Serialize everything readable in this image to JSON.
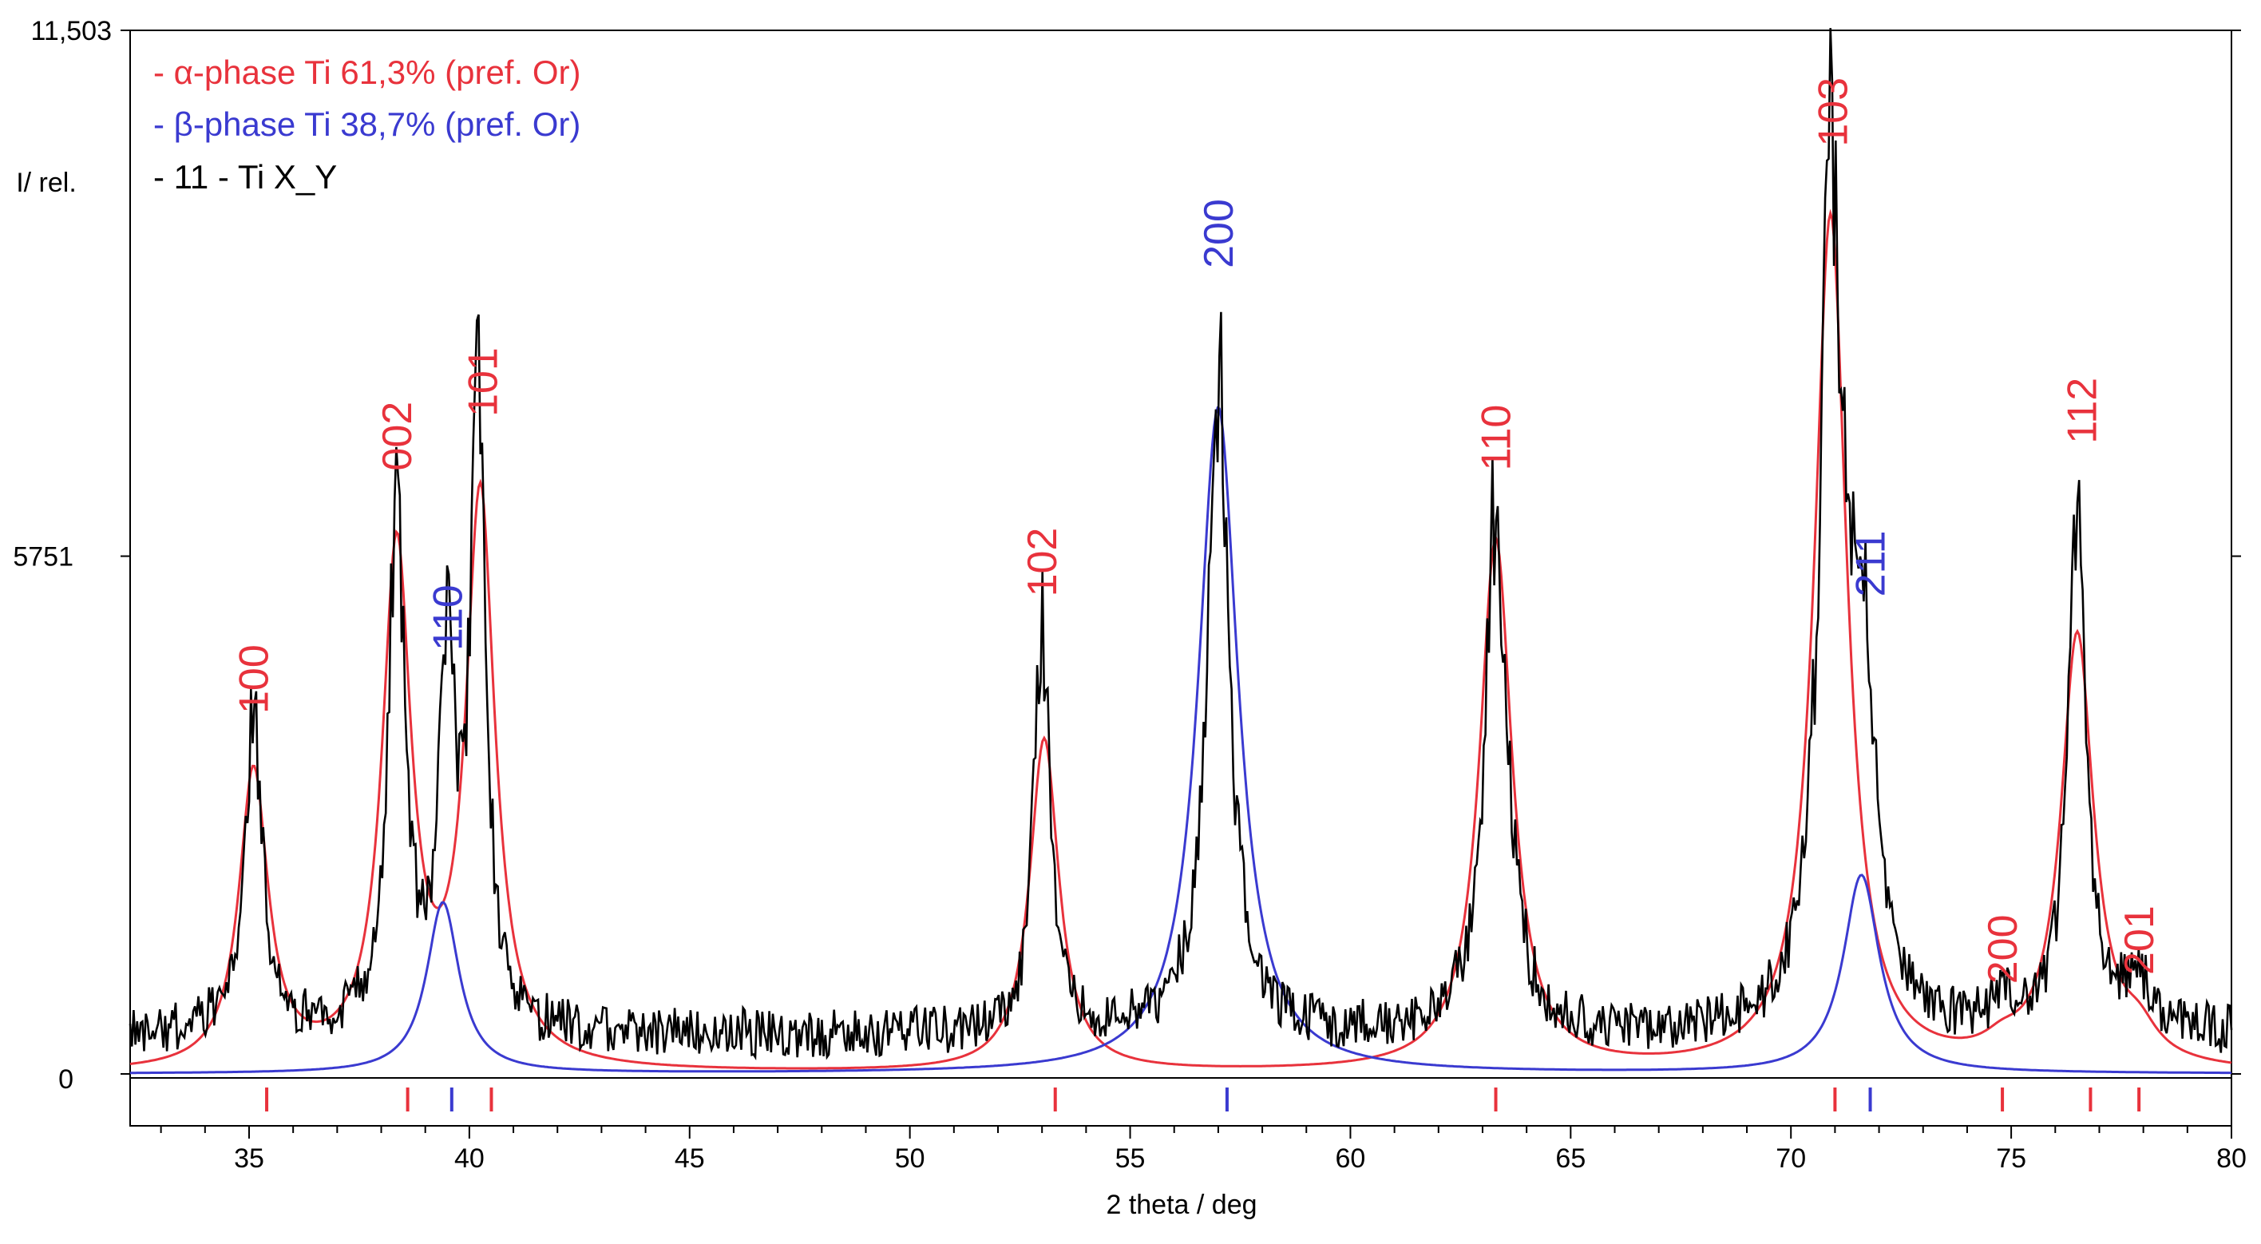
{
  "chart_data": {
    "type": "line",
    "xlabel": "2 theta /  deg",
    "ylabel": "I/ rel.",
    "xlim": [
      32.3,
      80
    ],
    "ylim": [
      0,
      11503
    ],
    "x_ticks": [
      "35",
      "40",
      "45",
      "50",
      "55",
      "60",
      "65",
      "70",
      "75",
      "80"
    ],
    "y_tick_labels": [
      {
        "value": 11503,
        "label": "11,503"
      },
      {
        "value": 5751,
        "label": "5751"
      },
      {
        "value": 0,
        "label": "0"
      }
    ],
    "grid": false,
    "legend_position": "top-left",
    "legend": [
      {
        "text": "- α-phase Ti 61,3% (pref. Or)",
        "color": "#e8323c"
      },
      {
        "text": "- β-phase Ti 38,7% (pref. Or)",
        "color": "#3a3ad0"
      },
      {
        "text": "- 11 - Ti X_Y",
        "color": "#000000"
      }
    ],
    "colors": {
      "alpha": "#e8323c",
      "beta": "#3a3ad0",
      "measured": "#000000"
    },
    "measured_peaks": [
      {
        "x": 35.1,
        "y": 3600,
        "w": 0.25
      },
      {
        "x": 38.35,
        "y": 5800,
        "w": 0.22
      },
      {
        "x": 39.5,
        "y": 4000,
        "w": 0.22
      },
      {
        "x": 40.2,
        "y": 6500,
        "w": 0.22
      },
      {
        "x": 53.0,
        "y": 4500,
        "w": 0.22
      },
      {
        "x": 57.0,
        "y": 7200,
        "w": 0.3
      },
      {
        "x": 63.3,
        "y": 6000,
        "w": 0.3
      },
      {
        "x": 70.9,
        "y": 9300,
        "w": 0.3
      },
      {
        "x": 71.6,
        "y": 3900,
        "w": 0.35
      },
      {
        "x": 76.5,
        "y": 6000,
        "w": 0.25
      },
      {
        "x": 77.9,
        "y": 500,
        "w": 0.4
      },
      {
        "x": 74.8,
        "y": 250,
        "w": 0.3
      }
    ],
    "series": [
      {
        "name": "α-phase Ti 61,3% (pref. Or)",
        "color": "#e8323c",
        "peaks": [
          {
            "x": 35.1,
            "y": 3300,
            "w": 0.4
          },
          {
            "x": 38.35,
            "y": 5700,
            "w": 0.4
          },
          {
            "x": 40.25,
            "y": 6300,
            "w": 0.4
          },
          {
            "x": 53.05,
            "y": 3700,
            "w": 0.4
          },
          {
            "x": 63.3,
            "y": 5900,
            "w": 0.45
          },
          {
            "x": 70.9,
            "y": 9500,
            "w": 0.45
          },
          {
            "x": 76.5,
            "y": 4800,
            "w": 0.45
          },
          {
            "x": 74.8,
            "y": 150,
            "w": 0.5
          },
          {
            "x": 77.9,
            "y": 300,
            "w": 0.5
          }
        ],
        "ref_ticks": [
          35.4,
          38.6,
          40.5,
          53.3,
          63.3,
          71.0,
          74.8,
          76.8,
          77.9
        ]
      },
      {
        "name": "β-phase Ti 38,7% (pref. Or)",
        "color": "#3a3ad0",
        "peaks": [
          {
            "x": 39.4,
            "y": 1900,
            "w": 0.45
          },
          {
            "x": 57.0,
            "y": 7400,
            "w": 0.55
          },
          {
            "x": 71.6,
            "y": 2200,
            "w": 0.5
          }
        ],
        "ref_ticks": [
          39.6,
          57.2,
          71.8
        ]
      }
    ],
    "peak_labels": [
      {
        "text": "100",
        "x": 35.1,
        "y": 4000,
        "phase": "alpha"
      },
      {
        "text": "002",
        "x": 38.35,
        "y": 6700,
        "phase": "alpha"
      },
      {
        "text": "110",
        "x": 39.5,
        "y": 4700,
        "phase": "beta"
      },
      {
        "text": "101",
        "x": 40.3,
        "y": 7300,
        "phase": "alpha"
      },
      {
        "text": "102",
        "x": 53.0,
        "y": 5300,
        "phase": "alpha"
      },
      {
        "text": "200",
        "x": 57.0,
        "y": 8950,
        "phase": "beta"
      },
      {
        "text": "110",
        "x": 63.3,
        "y": 6700,
        "phase": "alpha"
      },
      {
        "text": "103",
        "x": 70.95,
        "y": 10300,
        "phase": "alpha"
      },
      {
        "text": "211",
        "x": 71.8,
        "y": 5300,
        "phase": "beta"
      },
      {
        "text": "200",
        "x": 74.8,
        "y": 1000,
        "phase": "alpha"
      },
      {
        "text": "112",
        "x": 76.6,
        "y": 7000,
        "phase": "alpha"
      },
      {
        "text": "201",
        "x": 77.9,
        "y": 1100,
        "phase": "alpha"
      }
    ]
  }
}
